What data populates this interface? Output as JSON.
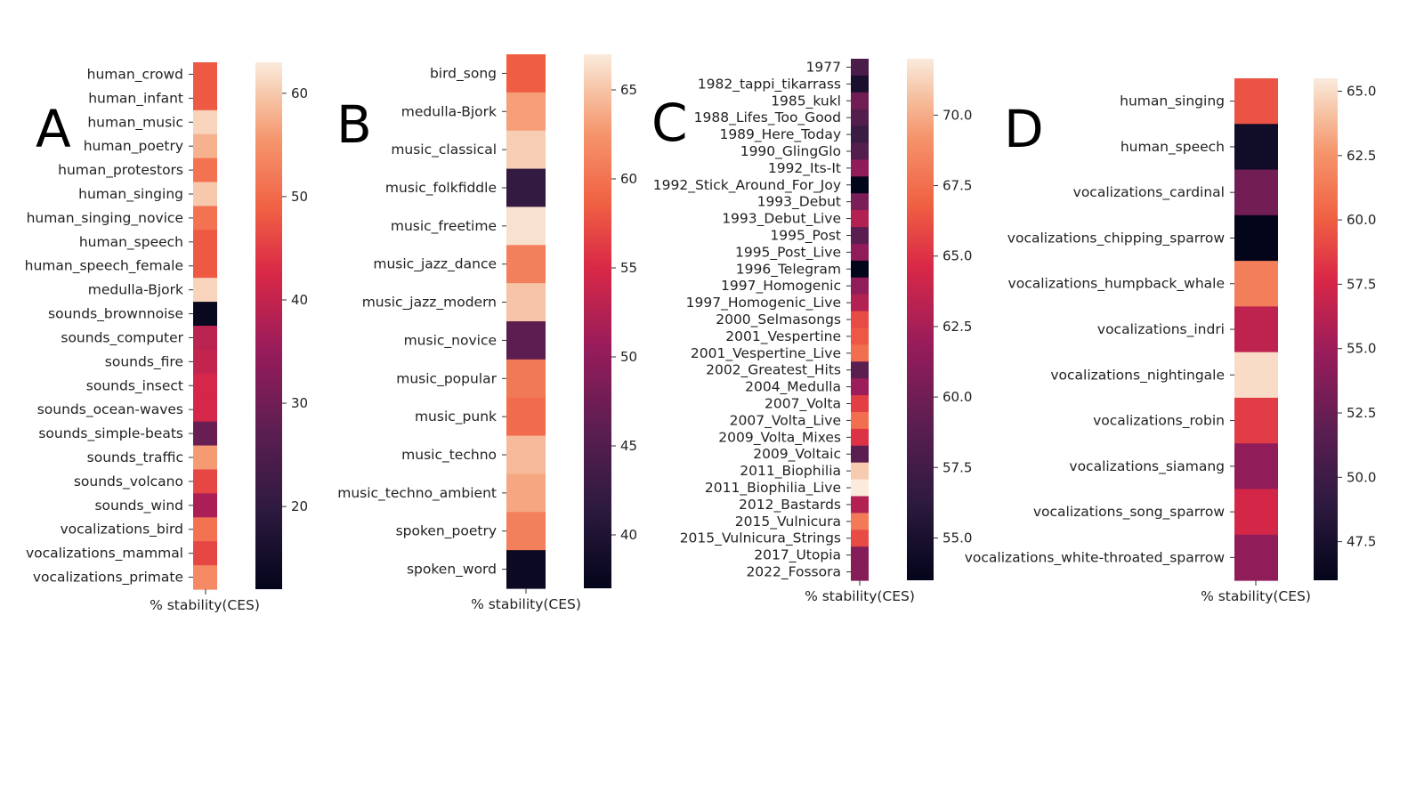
{
  "chart_data": [
    {
      "panel": "A",
      "type": "heatmap",
      "xlabel": "% stability(CES)",
      "categories": [
        "human_crowd",
        "human_infant",
        "human_music",
        "human_poetry",
        "human_protestors",
        "human_singing",
        "human_singing_novice",
        "human_speech",
        "human_speech_female",
        "medulla-Bjork",
        "sounds_brownnoise",
        "sounds_computer",
        "sounds_fire",
        "sounds_insect",
        "sounds_ocean-waves",
        "sounds_simple-beats",
        "sounds_traffic",
        "sounds_volcano",
        "sounds_wind",
        "vocalizations_bird",
        "vocalizations_mammal",
        "vocalizations_primate"
      ],
      "values": [
        48,
        48,
        61,
        58,
        51,
        60,
        51,
        48,
        48,
        61,
        13,
        39,
        40,
        42,
        42,
        29,
        56,
        46,
        37,
        51,
        46,
        54
      ],
      "colorbar": {
        "min": 12,
        "max": 63,
        "ticks": [
          20,
          30,
          40,
          50,
          60
        ]
      }
    },
    {
      "panel": "B",
      "type": "heatmap",
      "xlabel": "% stability(CES)",
      "categories": [
        "bird_song",
        "medulla-Bjork",
        "music_classical",
        "music_folkfiddle",
        "music_freetime",
        "music_jazz_dance",
        "music_jazz_modern",
        "music_novice",
        "music_popular",
        "music_punk",
        "music_techno",
        "music_techno_ambient",
        "spoken_poetry",
        "spoken_word"
      ],
      "values": [
        58.5,
        63,
        65.5,
        42,
        66.5,
        61,
        65,
        46,
        60.5,
        59.5,
        64.5,
        63.5,
        61,
        38
      ],
      "colorbar": {
        "min": 37,
        "max": 67,
        "ticks": [
          40,
          45,
          50,
          55,
          60,
          65
        ]
      }
    },
    {
      "panel": "C",
      "type": "heatmap",
      "xlabel": "% stability(CES)",
      "categories": [
        "1977",
        "1982_tappi_tikarrass",
        "1985_kukl",
        "1988_Lifes_Too_Good",
        "1989_Here_Today",
        "1990_GlingGlo",
        "1992_Its-It",
        "1992_Stick_Around_For_Joy",
        "1993_Debut",
        "1993_Debut_Live",
        "1995_Post",
        "1995_Post_Live",
        "1996_Telegram",
        "1997_Homogenic",
        "1997_Homogenic_Live",
        "2000_Selmasongs",
        "2001_Vespertine",
        "2001_Vespertine_Live",
        "2002_Greatest_Hits",
        "2004_Medulla",
        "2007_Volta",
        "2007_Volta_Live",
        "2009_Volta_Mixes",
        "2009_Voltaic",
        "2011_Biophilia",
        "2011_Biophilia_Live",
        "2012_Bastards",
        "2015_Vulnicura",
        "2015_Vulnicura_Strings",
        "2017_Utopia",
        "2022_Fossora"
      ],
      "values": [
        58,
        55,
        60,
        58.5,
        57,
        58.5,
        61.5,
        53.5,
        60.5,
        63,
        59,
        61.5,
        53.5,
        61.5,
        63,
        66,
        66.5,
        67.5,
        59,
        62,
        65.5,
        67.5,
        65,
        59,
        71,
        72,
        63,
        68,
        66,
        61,
        61
      ],
      "colorbar": {
        "min": 53.5,
        "max": 72,
        "ticks": [
          55.0,
          57.5,
          60.0,
          62.5,
          65.0,
          67.5,
          70.0
        ]
      }
    },
    {
      "panel": "D",
      "type": "heatmap",
      "xlabel": "% stability(CES)",
      "categories": [
        "human_singing",
        "human_speech",
        "vocalizations_cardinal",
        "vocalizations_chipping_sparrow",
        "vocalizations_humpback_whale",
        "vocalizations_indri",
        "vocalizations_nightingale",
        "vocalizations_robin",
        "vocalizations_siamang",
        "vocalizations_song_sparrow",
        "vocalizations_white-throated_sparrow"
      ],
      "values": [
        59.5,
        47,
        53,
        46,
        61.5,
        56.5,
        65,
        58.5,
        54.5,
        57.5,
        54.5
      ],
      "colorbar": {
        "min": 46,
        "max": 65.5,
        "ticks": [
          47.5,
          50.0,
          52.5,
          55.0,
          57.5,
          60.0,
          62.5,
          65.0
        ]
      }
    }
  ]
}
